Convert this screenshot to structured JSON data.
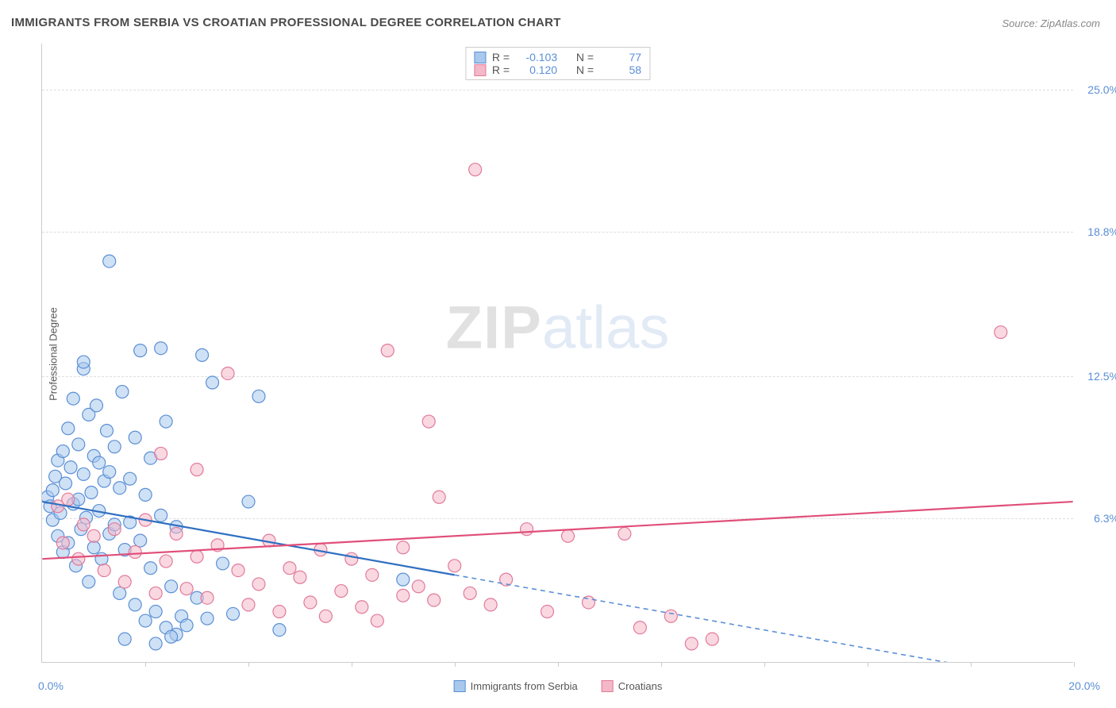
{
  "title": "IMMIGRANTS FROM SERBIA VS CROATIAN PROFESSIONAL DEGREE CORRELATION CHART",
  "source": "Source: ZipAtlas.com",
  "y_axis_label": "Professional Degree",
  "watermark_a": "ZIP",
  "watermark_b": "atlas",
  "chart": {
    "type": "scatter",
    "xlim": [
      0,
      20
    ],
    "ylim": [
      0,
      27
    ],
    "y_ticks": [
      6.3,
      12.5,
      18.8,
      25.0
    ],
    "y_tick_labels": [
      "6.3%",
      "12.5%",
      "18.8%",
      "25.0%"
    ],
    "x_ticks": [
      2,
      4,
      6,
      8,
      10,
      12,
      14,
      16,
      18,
      20
    ],
    "x_origin_label": "0.0%",
    "x_end_label": "20.0%",
    "background_color": "#ffffff",
    "grid_color": "#dddddd",
    "marker_radius": 8,
    "marker_stroke_width": 1.2,
    "trend_line_width": 2.2
  },
  "series": [
    {
      "name": "Immigrants from Serbia",
      "fill": "#a8c8ec",
      "stroke": "#5b8fd6",
      "fill_opacity": 0.55,
      "stat_R": "-0.103",
      "stat_N": "77",
      "trend": {
        "x1": 0,
        "y1": 7.0,
        "x2": 8,
        "y2": 3.8,
        "color": "#2f6fc1"
      },
      "trend_ext": {
        "x1": 8,
        "y1": 3.8,
        "x2": 20,
        "y2": -1.0,
        "color": "#5b8fd6",
        "dash": "6,5"
      },
      "points": [
        [
          0.1,
          7.2
        ],
        [
          0.15,
          6.8
        ],
        [
          0.2,
          7.5
        ],
        [
          0.2,
          6.2
        ],
        [
          0.25,
          8.1
        ],
        [
          0.3,
          5.5
        ],
        [
          0.3,
          8.8
        ],
        [
          0.35,
          6.5
        ],
        [
          0.4,
          9.2
        ],
        [
          0.4,
          4.8
        ],
        [
          0.45,
          7.8
        ],
        [
          0.5,
          10.2
        ],
        [
          0.5,
          5.2
        ],
        [
          0.55,
          8.5
        ],
        [
          0.6,
          6.9
        ],
        [
          0.6,
          11.5
        ],
        [
          0.65,
          4.2
        ],
        [
          0.7,
          9.5
        ],
        [
          0.7,
          7.1
        ],
        [
          0.75,
          5.8
        ],
        [
          0.8,
          8.2
        ],
        [
          0.8,
          12.8
        ],
        [
          0.85,
          6.3
        ],
        [
          0.9,
          10.8
        ],
        [
          0.9,
          3.5
        ],
        [
          0.95,
          7.4
        ],
        [
          1.0,
          9.0
        ],
        [
          1.0,
          5.0
        ],
        [
          1.05,
          11.2
        ],
        [
          1.1,
          6.6
        ],
        [
          1.1,
          8.7
        ],
        [
          1.15,
          4.5
        ],
        [
          1.2,
          7.9
        ],
        [
          1.25,
          10.1
        ],
        [
          1.3,
          5.6
        ],
        [
          1.3,
          8.3
        ],
        [
          1.4,
          6.0
        ],
        [
          1.4,
          9.4
        ],
        [
          1.5,
          3.0
        ],
        [
          1.5,
          7.6
        ],
        [
          1.55,
          11.8
        ],
        [
          1.6,
          4.9
        ],
        [
          1.7,
          8.0
        ],
        [
          1.7,
          6.1
        ],
        [
          1.8,
          2.5
        ],
        [
          1.8,
          9.8
        ],
        [
          1.9,
          5.3
        ],
        [
          2.0,
          7.3
        ],
        [
          2.0,
          1.8
        ],
        [
          2.1,
          4.1
        ],
        [
          2.1,
          8.9
        ],
        [
          2.2,
          2.2
        ],
        [
          2.3,
          6.4
        ],
        [
          2.4,
          1.5
        ],
        [
          2.4,
          10.5
        ],
        [
          2.5,
          3.3
        ],
        [
          2.6,
          1.2
        ],
        [
          2.6,
          5.9
        ],
        [
          2.7,
          2.0
        ],
        [
          1.3,
          17.5
        ],
        [
          0.8,
          13.1
        ],
        [
          1.9,
          13.6
        ],
        [
          2.3,
          13.7
        ],
        [
          2.8,
          1.6
        ],
        [
          3.0,
          2.8
        ],
        [
          3.1,
          13.4
        ],
        [
          3.2,
          1.9
        ],
        [
          3.5,
          4.3
        ],
        [
          3.7,
          2.1
        ],
        [
          3.3,
          12.2
        ],
        [
          4.0,
          7.0
        ],
        [
          4.2,
          11.6
        ],
        [
          4.6,
          1.4
        ],
        [
          7.0,
          3.6
        ],
        [
          1.6,
          1.0
        ],
        [
          2.2,
          0.8
        ],
        [
          2.5,
          1.1
        ]
      ]
    },
    {
      "name": "Croatians",
      "fill": "#f4b8c8",
      "stroke": "#e27a9a",
      "fill_opacity": 0.55,
      "stat_R": "0.120",
      "stat_N": "58",
      "trend": {
        "x1": 0,
        "y1": 4.5,
        "x2": 20,
        "y2": 7.0,
        "color": "#e04f7a"
      },
      "points": [
        [
          0.3,
          6.8
        ],
        [
          0.4,
          5.2
        ],
        [
          0.5,
          7.1
        ],
        [
          0.7,
          4.5
        ],
        [
          0.8,
          6.0
        ],
        [
          1.0,
          5.5
        ],
        [
          1.2,
          4.0
        ],
        [
          1.4,
          5.8
        ],
        [
          1.6,
          3.5
        ],
        [
          1.8,
          4.8
        ],
        [
          2.0,
          6.2
        ],
        [
          2.2,
          3.0
        ],
        [
          2.3,
          9.1
        ],
        [
          2.4,
          4.4
        ],
        [
          2.6,
          5.6
        ],
        [
          2.8,
          3.2
        ],
        [
          3.0,
          4.6
        ],
        [
          3.0,
          8.4
        ],
        [
          3.2,
          2.8
        ],
        [
          3.4,
          5.1
        ],
        [
          3.6,
          12.6
        ],
        [
          3.8,
          4.0
        ],
        [
          4.0,
          2.5
        ],
        [
          4.2,
          3.4
        ],
        [
          4.4,
          5.3
        ],
        [
          4.6,
          2.2
        ],
        [
          4.8,
          4.1
        ],
        [
          5.0,
          3.7
        ],
        [
          5.2,
          2.6
        ],
        [
          5.4,
          4.9
        ],
        [
          5.5,
          2.0
        ],
        [
          5.8,
          3.1
        ],
        [
          6.0,
          4.5
        ],
        [
          6.2,
          2.4
        ],
        [
          6.4,
          3.8
        ],
        [
          6.7,
          13.6
        ],
        [
          7.0,
          2.9
        ],
        [
          7.0,
          5.0
        ],
        [
          7.3,
          3.3
        ],
        [
          7.5,
          10.5
        ],
        [
          7.6,
          2.7
        ],
        [
          7.7,
          7.2
        ],
        [
          8.0,
          4.2
        ],
        [
          8.3,
          3.0
        ],
        [
          8.4,
          21.5
        ],
        [
          8.7,
          2.5
        ],
        [
          9.0,
          3.6
        ],
        [
          9.4,
          5.8
        ],
        [
          9.8,
          2.2
        ],
        [
          10.2,
          5.5
        ],
        [
          10.6,
          2.6
        ],
        [
          11.3,
          5.6
        ],
        [
          11.6,
          1.5
        ],
        [
          12.2,
          2.0
        ],
        [
          12.6,
          0.8
        ],
        [
          13.0,
          1.0
        ],
        [
          18.6,
          14.4
        ],
        [
          6.5,
          1.8
        ]
      ]
    }
  ],
  "stat_labels": {
    "R": "R  =",
    "N": "N  ="
  },
  "legend_series_a": "Immigrants from Serbia",
  "legend_series_b": "Croatians"
}
